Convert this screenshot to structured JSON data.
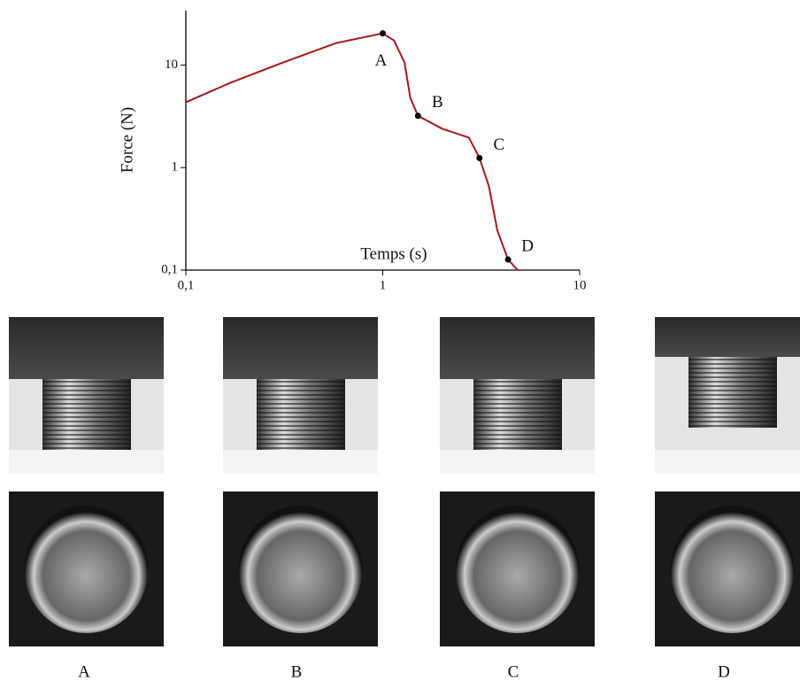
{
  "chart_data": {
    "type": "line",
    "xlabel": "Temps (s)",
    "ylabel": "Force (N)",
    "log_x": true,
    "log_y": true,
    "xlim": [
      0.1,
      10
    ],
    "ylim": [
      0.1,
      34
    ],
    "xticks": [
      {
        "value": 0.1,
        "label": "0,1"
      },
      1,
      10
    ],
    "yticks": [
      {
        "value": 0.1,
        "label": "0,1"
      },
      1,
      10
    ],
    "series": [
      {
        "color": "#a81818",
        "x": [
          0.1,
          0.168,
          0.312,
          0.58,
          1,
          1.14,
          1.29,
          1.38,
          1.51,
          2.0,
          2.74,
          3.1,
          3.46,
          3.82,
          4.33,
          4.84
        ],
        "values": [
          4.35,
          6.7,
          10.6,
          16.4,
          20.4,
          17.4,
          10.6,
          4.8,
          3.2,
          2.4,
          1.96,
          1.24,
          0.66,
          0.244,
          0.127,
          0.1
        ]
      }
    ],
    "annotations": [
      {
        "text": "A",
        "x": 1,
        "y": 20.4
      },
      {
        "text": "B",
        "x": 1.51,
        "y": 3.2
      },
      {
        "text": "C",
        "x": 3.1,
        "y": 1.24
      },
      {
        "text": "D",
        "x": 4.33,
        "y": 0.127
      }
    ]
  },
  "photo_labels": [
    "A",
    "B",
    "C",
    "D"
  ]
}
